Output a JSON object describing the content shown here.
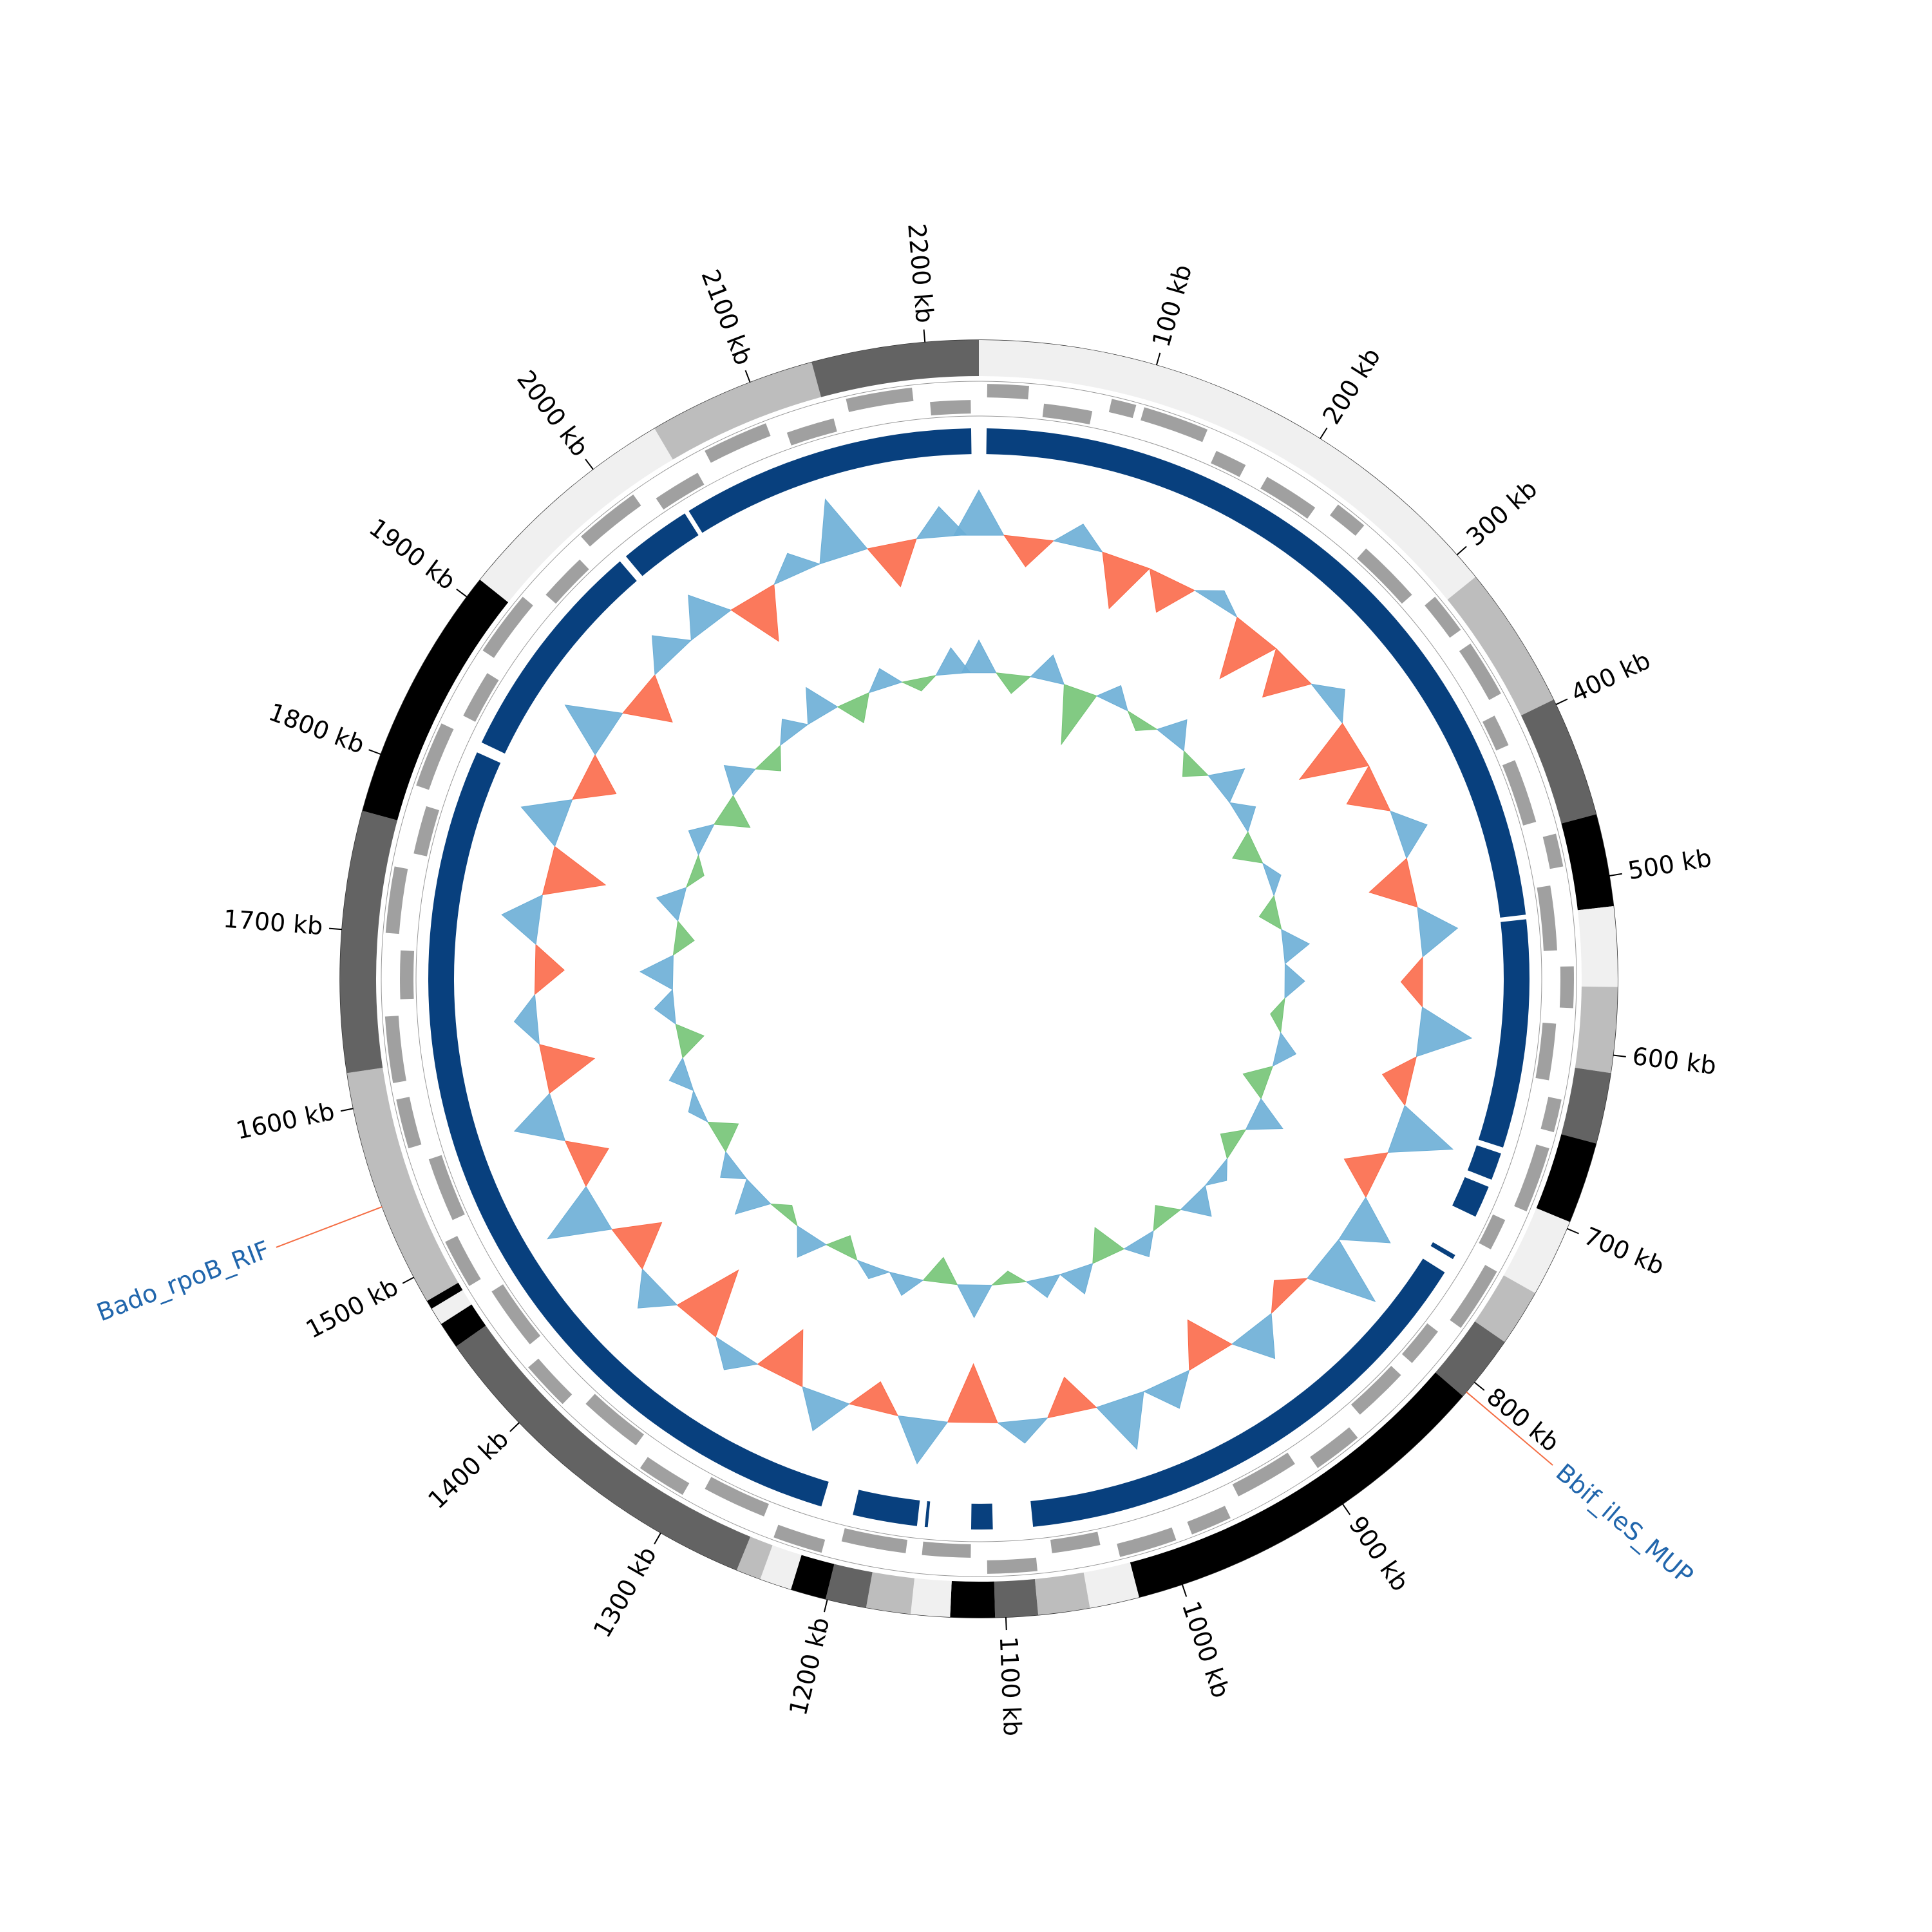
{
  "chart_data": {
    "type": "circular",
    "xlim": [
      0,
      2230
    ],
    "xticks": [
      {
        "value": 100,
        "label": "100 kb"
      },
      {
        "value": 200,
        "label": "200 kb"
      },
      {
        "value": 300,
        "label": "300 kb"
      },
      {
        "value": 400,
        "label": "400 kb"
      },
      {
        "value": 500,
        "label": "500 kb"
      },
      {
        "value": 600,
        "label": "600 kb"
      },
      {
        "value": 700,
        "label": "700 kb"
      },
      {
        "value": 800,
        "label": "800 kb"
      },
      {
        "value": 900,
        "label": "900 kb"
      },
      {
        "value": 1000,
        "label": "1000 kb"
      },
      {
        "value": 1100,
        "label": "1100 kb"
      },
      {
        "value": 1200,
        "label": "1200 kb"
      },
      {
        "value": 1300,
        "label": "1300 kb"
      },
      {
        "value": 1400,
        "label": "1400 kb"
      },
      {
        "value": 1500,
        "label": "1500 kb"
      },
      {
        "value": 1600,
        "label": "1600 kb"
      },
      {
        "value": 1700,
        "label": "1700 kb"
      },
      {
        "value": 1800,
        "label": "1800 kb"
      },
      {
        "value": 1900,
        "label": "1900 kb"
      },
      {
        "value": 2000,
        "label": "2000 kb"
      },
      {
        "value": 2100,
        "label": "2100 kb"
      },
      {
        "value": 2200,
        "label": "2200 kb"
      }
    ],
    "contigs": [
      [
        0,
        316,
        "#f0f0f0"
      ],
      [
        316,
        397,
        "#bdbdbd"
      ],
      [
        397,
        465,
        "#636363"
      ],
      [
        465,
        517,
        "#000000"
      ],
      [
        517,
        562,
        "#f0f0f0"
      ],
      [
        562,
        610,
        "#bdbdbd"
      ],
      [
        610,
        650,
        "#636363"
      ],
      [
        650,
        696,
        "#000000"
      ],
      [
        696,
        740,
        "#f0f0f0"
      ],
      [
        740,
        772,
        "#bdbdbd"
      ],
      [
        772,
        810,
        "#636363"
      ],
      [
        810,
        1025,
        "#000000"
      ],
      [
        1025,
        1053,
        "#f0f0f0"
      ],
      [
        1053,
        1082,
        "#bdbdbd"
      ],
      [
        1082,
        1106,
        "#636363"
      ],
      [
        1106,
        1131,
        "#000000"
      ],
      [
        1131,
        1153,
        "#f0f0f0"
      ],
      [
        1153,
        1178,
        "#bdbdbd"
      ],
      [
        1178,
        1201,
        "#636363"
      ],
      [
        1201,
        1221,
        "#000000"
      ],
      [
        1221,
        1239,
        "#f0f0f0"
      ],
      [
        1239,
        1253,
        "#bdbdbd"
      ],
      [
        1253,
        1455,
        "#636363"
      ],
      [
        1455,
        1470,
        "#000000"
      ],
      [
        1470,
        1480,
        "#f0f0f0"
      ],
      [
        1480,
        1485,
        "#000000"
      ],
      [
        1485,
        1620,
        "#bdbdbd"
      ],
      [
        1620,
        1767,
        "#636363"
      ],
      [
        1767,
        1912,
        "#000000"
      ],
      [
        1912,
        2041,
        "#f0f0f0"
      ],
      [
        2041,
        2136,
        "#bdbdbd"
      ],
      [
        2136,
        2230,
        "#636363"
      ]
    ],
    "genes": [
      [
        5,
        30,
        1
      ],
      [
        40,
        70,
        -1
      ],
      [
        80,
        95,
        1
      ],
      [
        100,
        140,
        1
      ],
      [
        150,
        170,
        -1
      ],
      [
        185,
        220,
        -1
      ],
      [
        230,
        250,
        1
      ],
      [
        260,
        300,
        -1
      ],
      [
        310,
        335,
        1
      ],
      [
        345,
        380,
        1
      ],
      [
        390,
        410,
        -1
      ],
      [
        420,
        460,
        -1
      ],
      [
        470,
        490,
        1
      ],
      [
        500,
        540,
        -1
      ],
      [
        550,
        575,
        1
      ],
      [
        585,
        620,
        -1
      ],
      [
        630,
        650,
        1
      ],
      [
        660,
        700,
        1
      ],
      [
        710,
        730,
        -1
      ],
      [
        740,
        780,
        1
      ],
      [
        790,
        815,
        -1
      ],
      [
        825,
        860,
        -1
      ],
      [
        870,
        900,
        1
      ],
      [
        910,
        950,
        -1
      ],
      [
        960,
        985,
        1
      ],
      [
        995,
        1030,
        1
      ],
      [
        1040,
        1070,
        -1
      ],
      [
        1080,
        1110,
        1
      ],
      [
        1120,
        1150,
        -1
      ],
      [
        1160,
        1200,
        -1
      ],
      [
        1210,
        1240,
        1
      ],
      [
        1250,
        1290,
        -1
      ],
      [
        1300,
        1330,
        1
      ],
      [
        1340,
        1380,
        -1
      ],
      [
        1390,
        1420,
        1
      ],
      [
        1430,
        1470,
        -1
      ],
      [
        1480,
        1510,
        1
      ],
      [
        1520,
        1560,
        -1
      ],
      [
        1570,
        1600,
        1
      ],
      [
        1610,
        1650,
        1
      ],
      [
        1660,
        1690,
        -1
      ],
      [
        1700,
        1740,
        1
      ],
      [
        1750,
        1780,
        -1
      ],
      [
        1790,
        1830,
        1
      ],
      [
        1840,
        1870,
        -1
      ],
      [
        1880,
        1920,
        1
      ],
      [
        1930,
        1960,
        -1
      ],
      [
        1970,
        2010,
        1
      ],
      [
        2020,
        2050,
        -1
      ],
      [
        2060,
        2100,
        1
      ],
      [
        2110,
        2140,
        -1
      ],
      [
        2150,
        2190,
        1
      ],
      [
        2200,
        2225,
        -1
      ]
    ],
    "gene_color": "#a0a0a0",
    "blocks": [
      [
        5,
        516
      ],
      [
        519,
        668
      ],
      [
        672,
        690
      ],
      [
        695,
        716
      ],
      [
        744,
        747
      ],
      [
        757,
        1080
      ],
      [
        1106,
        1120
      ],
      [
        1148,
        1150
      ],
      [
        1155,
        1197
      ],
      [
        1218,
        1823
      ],
      [
        1830,
        1978
      ],
      [
        1983,
        2030
      ],
      [
        2033,
        2225
      ]
    ],
    "block_color": "#08407e",
    "x": [
      0,
      40,
      80,
      120,
      160,
      200,
      240,
      280,
      320,
      360,
      400,
      440,
      480,
      520,
      560,
      600,
      640,
      680,
      720,
      760,
      800,
      840,
      880,
      920,
      960,
      1000,
      1040,
      1080,
      1120,
      1160,
      1200,
      1240,
      1280,
      1320,
      1360,
      1400,
      1440,
      1480,
      1520,
      1560,
      1600,
      1640,
      1680,
      1720,
      1760,
      1800,
      1840,
      1880,
      1920,
      1960,
      2000,
      2040,
      2080,
      2120,
      2160,
      2200
    ],
    "tracks": [
      {
        "colors": [
          "#6baed6",
          "#fb6a4a"
        ],
        "values": [
          0.6,
          -0.4,
          0.3,
          -0.7,
          -0.5,
          0.2,
          -0.8,
          -0.6,
          0.3,
          -0.9,
          -0.5,
          0.4,
          -0.6,
          0.5,
          -0.3,
          0.7,
          -0.4,
          0.8,
          -0.5,
          0.6,
          0.9,
          -0.3,
          0.5,
          -0.6,
          0.4,
          0.7,
          -0.5,
          0.3,
          -0.8,
          0.6,
          -0.4,
          0.5,
          -0.7,
          0.3,
          -0.9,
          0.4,
          -0.6,
          0.8,
          -0.5,
          0.6,
          -0.7,
          0.3,
          -0.4,
          0.5,
          -0.8,
          0.6,
          -0.5,
          0.7,
          -0.6,
          0.4,
          0.5,
          -0.7,
          0.3,
          0.8,
          -0.6,
          0.4
        ]
      },
      {
        "colors": [
          "#6baed6",
          "#74c476"
        ],
        "values": [
          0.5,
          -0.3,
          0.4,
          -0.9,
          0.3,
          -0.2,
          0.4,
          -0.3,
          0.5,
          0.3,
          -0.4,
          0.2,
          -0.3,
          0.4,
          0.3,
          -0.2,
          0.3,
          -0.4,
          0.5,
          -0.3,
          0.2,
          0.4,
          -0.3,
          0.3,
          -0.5,
          0.4,
          0.3,
          -0.2,
          0.5,
          -0.4,
          0.3,
          0.2,
          -0.3,
          0.4,
          -0.2,
          0.5,
          0.3,
          -0.4,
          0.2,
          0.3,
          -0.4,
          0.3,
          0.5,
          -0.3,
          0.4,
          -0.2,
          0.3,
          -0.5,
          0.4,
          -0.3,
          0.3,
          0.5,
          -0.4,
          0.3,
          -0.2,
          0.4
        ]
      }
    ],
    "annotations": [
      {
        "label": "Bado_rpoB_RIF",
        "position": 1543
      },
      {
        "label": "Bbif_ileS_MUP",
        "position": 807
      }
    ],
    "annotation_colors": [
      "#2166ac",
      "#f46d43"
    ]
  }
}
